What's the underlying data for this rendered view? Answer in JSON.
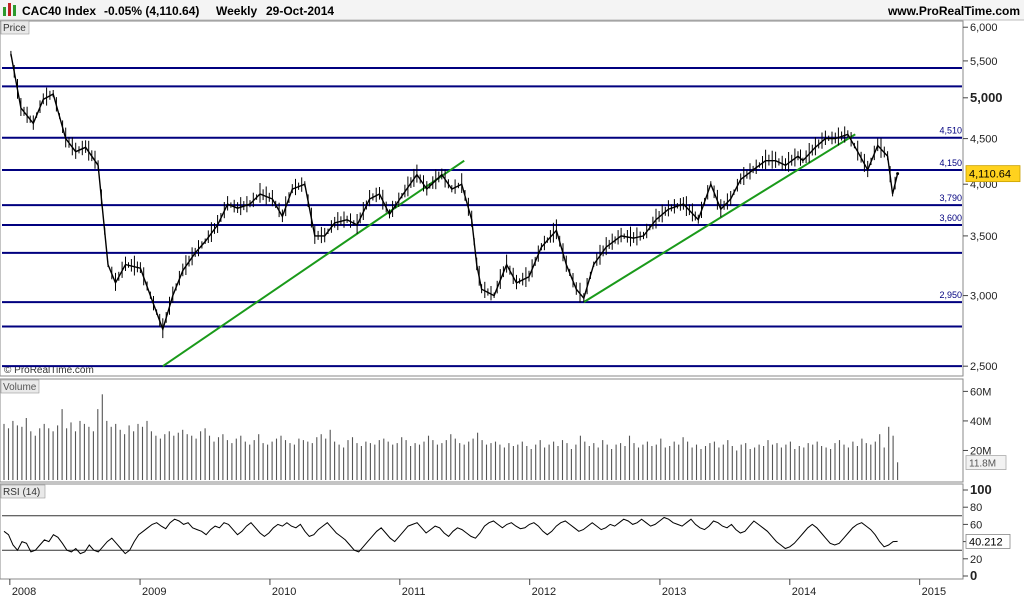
{
  "header": {
    "title": "CAC40 Index",
    "change": "-0.05% (4,110.64)",
    "period": "Weekly",
    "date": "29-Oct-2014",
    "site": "www.ProRealTime.com"
  },
  "panels": {
    "price_label": "Price",
    "copyright": "© ProRealTime.com",
    "volume_label": "Volume",
    "rsi_label": "RSI (14)"
  },
  "colors": {
    "background": "#ffffff",
    "price_line": "#000000",
    "level_line": "#00007f",
    "trendline": "#1a9a1a",
    "last_price_badge": "#ffd21e",
    "grid": "#d8d8d8"
  },
  "chart_data": [
    {
      "type": "line",
      "panel": "price",
      "title": "CAC40 Index",
      "x_tick_labels": [
        "2008",
        "2009",
        "2010",
        "2011",
        "2012",
        "2013",
        "2014",
        "2015"
      ],
      "y_tick_labels": [
        "2,500",
        "3,000",
        "3,500",
        "4,000",
        "4,500",
        "5,000",
        "5,500",
        "6,000"
      ],
      "y_scale": "log",
      "ylim": [
        2450,
        6050
      ],
      "last_value": 4110.64,
      "last_value_label": "4,110.64",
      "x": [
        "2008-01-04",
        "2008-02-01",
        "2008-03-07",
        "2008-04-04",
        "2008-05-02",
        "2008-06-06",
        "2008-07-04",
        "2008-08-01",
        "2008-09-05",
        "2008-10-03",
        "2008-10-24",
        "2008-11-21",
        "2009-01-02",
        "2009-01-30",
        "2009-03-06",
        "2009-04-03",
        "2009-05-01",
        "2009-06-05",
        "2009-07-03",
        "2009-08-07",
        "2009-09-04",
        "2009-10-02",
        "2009-11-06",
        "2009-12-04",
        "2010-01-08",
        "2010-02-05",
        "2010-03-05",
        "2010-04-09",
        "2010-05-07",
        "2010-06-04",
        "2010-07-02",
        "2010-08-06",
        "2010-09-03",
        "2010-10-08",
        "2010-11-05",
        "2010-12-03",
        "2011-01-07",
        "2011-02-18",
        "2011-03-18",
        "2011-04-29",
        "2011-05-27",
        "2011-06-24",
        "2011-07-22",
        "2011-08-05",
        "2011-08-19",
        "2011-09-23",
        "2011-10-28",
        "2011-11-25",
        "2011-12-30",
        "2012-02-03",
        "2012-03-16",
        "2012-04-13",
        "2012-05-11",
        "2012-06-01",
        "2012-06-29",
        "2012-08-03",
        "2012-09-14",
        "2012-10-19",
        "2012-11-16",
        "2012-12-21",
        "2013-01-25",
        "2013-03-08",
        "2013-04-19",
        "2013-05-24",
        "2013-06-21",
        "2013-07-19",
        "2013-08-16",
        "2013-09-20",
        "2013-10-25",
        "2013-11-22",
        "2013-12-20",
        "2014-01-24",
        "2014-02-07",
        "2014-03-14",
        "2014-04-11",
        "2014-05-09",
        "2014-06-13",
        "2014-07-11",
        "2014-08-08",
        "2014-09-05",
        "2014-10-03",
        "2014-10-17",
        "2014-10-31"
      ],
      "series": [
        {
          "values": [
            5600,
            4870,
            4680,
            4980,
            5050,
            4500,
            4350,
            4400,
            4200,
            3250,
            3100,
            3250,
            3220,
            3000,
            2750,
            3000,
            3200,
            3350,
            3450,
            3600,
            3800,
            3760,
            3800,
            3900,
            3850,
            3680,
            3950,
            4000,
            3500,
            3500,
            3620,
            3650,
            3600,
            3850,
            3900,
            3700,
            3880,
            4100,
            3950,
            4100,
            3950,
            4000,
            3650,
            3250,
            3050,
            3000,
            3250,
            3100,
            3150,
            3400,
            3550,
            3250,
            3050,
            2980,
            3250,
            3400,
            3500,
            3480,
            3500,
            3650,
            3750,
            3800,
            3650,
            4000,
            3750,
            3850,
            4050,
            4150,
            4250,
            4250,
            4200,
            4300,
            4250,
            4400,
            4500,
            4500,
            4550,
            4350,
            4150,
            4420,
            4300,
            3900,
            4110.64
          ]
        }
      ],
      "horizontal_levels": [
        {
          "value": 5400
        },
        {
          "value": 5150
        },
        {
          "value": 4510,
          "label": "4,510"
        },
        {
          "value": 4150,
          "label": "4,150"
        },
        {
          "value": 3790,
          "label": "3,790"
        },
        {
          "value": 3600,
          "label": "3,600"
        },
        {
          "value": 3350
        },
        {
          "value": 2950,
          "label": "2,950"
        },
        {
          "value": 2770
        },
        {
          "value": 2500
        }
      ],
      "trendlines": [
        {
          "x": [
            "2009-03-06",
            "2011-07-01"
          ],
          "y": [
            2500,
            4250
          ]
        },
        {
          "x": [
            "2012-06-01",
            "2014-07-04"
          ],
          "y": [
            2950,
            4550
          ]
        }
      ]
    },
    {
      "type": "bar",
      "panel": "volume",
      "y_tick_labels": [
        "20M",
        "40M",
        "60M"
      ],
      "ylim": [
        0,
        65
      ],
      "unit": "M",
      "last_value": 11.8,
      "last_value_label": "11.8M",
      "values": [
        38,
        35,
        40,
        37,
        36,
        42,
        33,
        30,
        35,
        38,
        35,
        33,
        37,
        48,
        35,
        39,
        33,
        40,
        38,
        36,
        33,
        48,
        58,
        40,
        36,
        38,
        34,
        31,
        37,
        33,
        38,
        36,
        40,
        33,
        30,
        28,
        31,
        33,
        30,
        32,
        34,
        31,
        30,
        28,
        33,
        35,
        30,
        26,
        29,
        31,
        27,
        25,
        28,
        30,
        26,
        24,
        27,
        31,
        25,
        24,
        26,
        28,
        30,
        27,
        25,
        24,
        28,
        27,
        26,
        25,
        29,
        31,
        28,
        34,
        26,
        24,
        22,
        27,
        29,
        25,
        23,
        26,
        25,
        24,
        27,
        28,
        26,
        24,
        25,
        29,
        27,
        23,
        25,
        24,
        26,
        30,
        27,
        24,
        25,
        27,
        31,
        28,
        25,
        24,
        26,
        28,
        32,
        27,
        24,
        25,
        26,
        24,
        22,
        25,
        23,
        24,
        26,
        23,
        21,
        24,
        27,
        22,
        24,
        26,
        23,
        27,
        25,
        21,
        24,
        30,
        26,
        23,
        25,
        22,
        27,
        24,
        21,
        24,
        25,
        23,
        30,
        25,
        22,
        24,
        26,
        23,
        24,
        28,
        22,
        23,
        26,
        24,
        29,
        26,
        22,
        24,
        21,
        23,
        25,
        26,
        22,
        24,
        27,
        23,
        20,
        24,
        25,
        21,
        22,
        24,
        23,
        27,
        24,
        25,
        22,
        24,
        26,
        21,
        23,
        22,
        25,
        24,
        26,
        23,
        22,
        21,
        25,
        27,
        24,
        22,
        26,
        23,
        28,
        25,
        24,
        26,
        31,
        22,
        36,
        30,
        12
      ]
    },
    {
      "type": "line",
      "panel": "rsi",
      "y_tick_labels": [
        "0",
        "20",
        "40",
        "60",
        "80",
        "100"
      ],
      "ylim": [
        0,
        100
      ],
      "overbought": 70,
      "oversold": 30,
      "last_value": 40.212,
      "last_value_label": "40.212",
      "values": [
        52,
        48,
        36,
        30,
        40,
        38,
        28,
        30,
        36,
        42,
        40,
        48,
        45,
        38,
        30,
        28,
        32,
        26,
        28,
        36,
        30,
        28,
        34,
        40,
        44,
        38,
        32,
        26,
        30,
        40,
        48,
        52,
        56,
        60,
        62,
        58,
        55,
        62,
        66,
        64,
        60,
        62,
        56,
        54,
        52,
        48,
        54,
        58,
        56,
        62,
        60,
        54,
        48,
        52,
        58,
        62,
        56,
        50,
        46,
        50,
        56,
        60,
        58,
        62,
        58,
        56,
        60,
        52,
        46,
        48,
        54,
        58,
        62,
        56,
        50,
        46,
        42,
        36,
        30,
        28,
        34,
        40,
        46,
        52,
        56,
        50,
        44,
        40,
        46,
        52,
        58,
        60,
        62,
        56,
        50,
        54,
        58,
        56,
        50,
        46,
        52,
        56,
        54,
        50,
        46,
        44,
        50,
        58,
        62,
        64,
        60,
        56,
        60,
        62,
        58,
        55,
        56,
        60,
        62,
        58,
        52,
        48,
        52,
        58,
        62,
        64,
        60,
        56,
        52,
        54,
        58,
        62,
        58,
        54,
        56,
        60,
        58,
        62,
        66,
        64,
        60,
        62,
        66,
        62,
        58,
        60,
        64,
        68,
        66,
        62,
        60,
        58,
        62,
        66,
        60,
        56,
        54,
        58,
        64,
        62,
        58,
        56,
        60,
        54,
        50,
        52,
        58,
        64,
        60,
        56,
        52,
        46,
        40,
        36,
        32,
        34,
        38,
        44,
        50,
        56,
        60,
        56,
        50,
        44,
        38,
        36,
        38,
        44,
        50,
        56,
        60,
        62,
        58,
        54,
        48,
        40,
        34,
        36,
        40,
        40.212
      ]
    }
  ]
}
